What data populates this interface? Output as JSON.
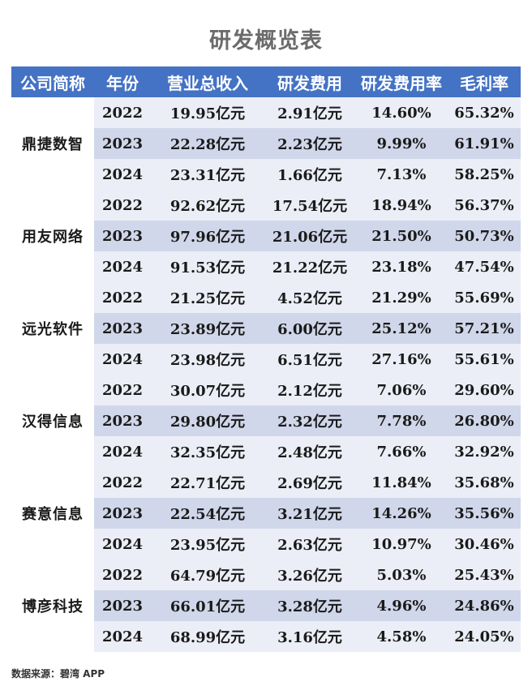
{
  "title": "研发概览表",
  "colors": {
    "header_bg": "#4472c4",
    "row_light": "#eceef7",
    "row_dark": "#d0d7ea"
  },
  "columns": [
    "公司简称",
    "年份",
    "营业总收入",
    "研发费用",
    "研发费用率",
    "毛利率"
  ],
  "companies": [
    {
      "name": "鼎捷数智",
      "rows": [
        {
          "year": "2022",
          "revenue": "19.95亿元",
          "rd": "2.91亿元",
          "rd_rate": "14.60%",
          "gross_margin": "65.32%"
        },
        {
          "year": "2023",
          "revenue": "22.28亿元",
          "rd": "2.23亿元",
          "rd_rate": "9.99%",
          "gross_margin": "61.91%"
        },
        {
          "year": "2024",
          "revenue": "23.31亿元",
          "rd": "1.66亿元",
          "rd_rate": "7.13%",
          "gross_margin": "58.25%"
        }
      ]
    },
    {
      "name": "用友网络",
      "rows": [
        {
          "year": "2022",
          "revenue": "92.62亿元",
          "rd": "17.54亿元",
          "rd_rate": "18.94%",
          "gross_margin": "56.37%"
        },
        {
          "year": "2023",
          "revenue": "97.96亿元",
          "rd": "21.06亿元",
          "rd_rate": "21.50%",
          "gross_margin": "50.73%"
        },
        {
          "year": "2024",
          "revenue": "91.53亿元",
          "rd": "21.22亿元",
          "rd_rate": "23.18%",
          "gross_margin": "47.54%"
        }
      ]
    },
    {
      "name": "远光软件",
      "rows": [
        {
          "year": "2022",
          "revenue": "21.25亿元",
          "rd": "4.52亿元",
          "rd_rate": "21.29%",
          "gross_margin": "55.69%"
        },
        {
          "year": "2023",
          "revenue": "23.89亿元",
          "rd": "6.00亿元",
          "rd_rate": "25.12%",
          "gross_margin": "57.21%"
        },
        {
          "year": "2024",
          "revenue": "23.98亿元",
          "rd": "6.51亿元",
          "rd_rate": "27.16%",
          "gross_margin": "55.61%"
        }
      ]
    },
    {
      "name": "汉得信息",
      "rows": [
        {
          "year": "2022",
          "revenue": "30.07亿元",
          "rd": "2.12亿元",
          "rd_rate": "7.06%",
          "gross_margin": "29.60%"
        },
        {
          "year": "2023",
          "revenue": "29.80亿元",
          "rd": "2.32亿元",
          "rd_rate": "7.78%",
          "gross_margin": "26.80%"
        },
        {
          "year": "2024",
          "revenue": "32.35亿元",
          "rd": "2.48亿元",
          "rd_rate": "7.66%",
          "gross_margin": "32.92%"
        }
      ]
    },
    {
      "name": "赛意信息",
      "rows": [
        {
          "year": "2022",
          "revenue": "22.71亿元",
          "rd": "2.69亿元",
          "rd_rate": "11.84%",
          "gross_margin": "35.68%"
        },
        {
          "year": "2023",
          "revenue": "22.54亿元",
          "rd": "3.21亿元",
          "rd_rate": "14.26%",
          "gross_margin": "35.56%"
        },
        {
          "year": "2024",
          "revenue": "23.95亿元",
          "rd": "2.63亿元",
          "rd_rate": "10.97%",
          "gross_margin": "30.46%"
        }
      ]
    },
    {
      "name": "博彦科技",
      "rows": [
        {
          "year": "2022",
          "revenue": "64.79亿元",
          "rd": "3.26亿元",
          "rd_rate": "5.03%",
          "gross_margin": "25.43%"
        },
        {
          "year": "2023",
          "revenue": "66.01亿元",
          "rd": "3.28亿元",
          "rd_rate": "4.96%",
          "gross_margin": "24.86%"
        },
        {
          "year": "2024",
          "revenue": "68.99亿元",
          "rd": "3.16亿元",
          "rd_rate": "4.58%",
          "gross_margin": "24.05%"
        }
      ]
    }
  ],
  "source": "数据来源：碧湾 APP"
}
